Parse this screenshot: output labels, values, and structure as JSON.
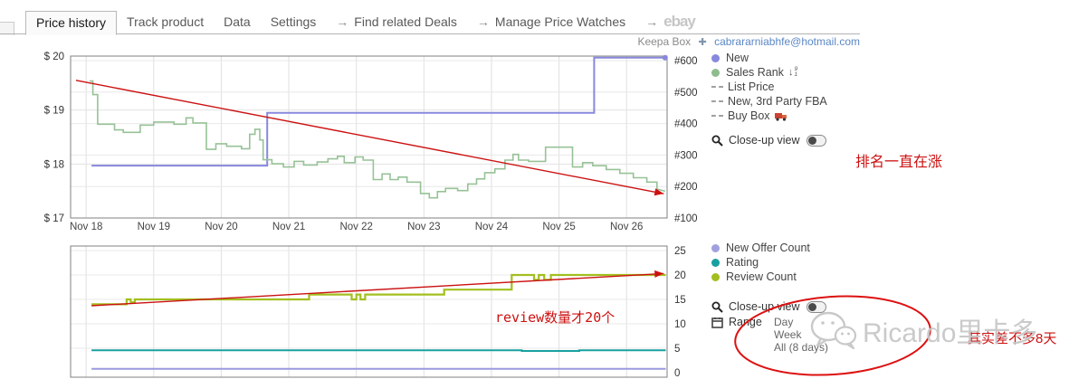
{
  "tabs": {
    "items": [
      {
        "label": "Price history",
        "active": true
      },
      {
        "label": "Track product",
        "active": false
      },
      {
        "label": "Data",
        "active": false
      },
      {
        "label": "Settings",
        "active": false
      },
      {
        "prefix": "→",
        "label": "Find related Deals",
        "active": false
      },
      {
        "prefix": "→",
        "label": "Manage Price Watches",
        "active": false
      },
      {
        "prefix": "→",
        "label": "ebay",
        "active": false,
        "logo": true
      }
    ]
  },
  "account": {
    "label": "Keepa Box",
    "icon": "keepa-plus-icon",
    "email": "cabrararniabhfe@hotmail.com"
  },
  "legend_top": {
    "items": [
      {
        "label": "New",
        "marker": "circle",
        "color": "#8888dd"
      },
      {
        "label": "Sales Rank",
        "marker": "circle",
        "color": "#8fbc8f",
        "icon": "sort-numeric-icon"
      },
      {
        "label": "List Price",
        "marker": "dash",
        "color": "#a0a0a0"
      },
      {
        "label": "New, 3rd Party FBA",
        "marker": "dash",
        "color": "#a0a0a0"
      },
      {
        "label": "Buy Box",
        "marker": "dash",
        "color": "#a0a0a0",
        "icon": "truck-icon"
      }
    ],
    "close_up_label": "Close-up view"
  },
  "legend_bottom": {
    "items": [
      {
        "label": "New Offer Count",
        "marker": "circle",
        "color": "#a0a0e0"
      },
      {
        "label": "Rating",
        "marker": "circle",
        "color": "#18a0a0"
      },
      {
        "label": "Review Count",
        "marker": "circle",
        "color": "#a2bf1f"
      }
    ],
    "close_up_label": "Close-up view",
    "range_label": "Range",
    "range_options": [
      "Day",
      "Week",
      "All (8 days)"
    ]
  },
  "annotations": {
    "rank_note": "排名一直在涨",
    "review_note": "review数量才20个",
    "days_note": "其实差不多8天",
    "color": "#cc1111"
  },
  "watermark": {
    "icon": "wechat-icon",
    "text": "Ricardo里卡多"
  },
  "chart_data": [
    {
      "type": "line",
      "title": "Price history (top chart)",
      "x_ticks": [
        "Nov 18",
        "Nov 19",
        "Nov 20",
        "Nov 21",
        "Nov 22",
        "Nov 23",
        "Nov 24",
        "Nov 25",
        "Nov 26"
      ],
      "x_tick_days": [
        18,
        19,
        20,
        21,
        22,
        23,
        24,
        25,
        26
      ],
      "x_range": [
        17.77,
        26.6
      ],
      "y_left": {
        "ticks": [
          "$ 20",
          "$ 19",
          "$ 18",
          "$ 17"
        ],
        "values": [
          20,
          19,
          18,
          17
        ],
        "range": [
          17,
          20
        ],
        "grid_values": [
          18,
          19
        ]
      },
      "y_right": {
        "ticks": [
          "#600",
          "#500",
          "#400",
          "#300",
          "#200",
          "#100"
        ],
        "values": [
          600,
          500,
          400,
          300,
          200,
          100
        ],
        "range": [
          100,
          600
        ],
        "grid_values": [
          200,
          300,
          400,
          500,
          600
        ]
      },
      "series": [
        {
          "name": "New",
          "color": "#8888dd",
          "axis": "left",
          "width": 2,
          "end_dot": true,
          "points": [
            [
              18.08,
              17.97
            ],
            [
              20.68,
              17.97
            ],
            [
              20.68,
              18.95
            ],
            [
              25.52,
              18.95
            ],
            [
              25.52,
              19.97
            ],
            [
              26.57,
              19.97
            ]
          ]
        },
        {
          "name": "Sales Rank",
          "color": "#97c297",
          "axis": "right",
          "width": 1.6,
          "points": [
            [
              18.05,
              535
            ],
            [
              18.1,
              535
            ],
            [
              18.1,
              492
            ],
            [
              18.17,
              492
            ],
            [
              18.17,
              398
            ],
            [
              18.42,
              398
            ],
            [
              18.42,
              380
            ],
            [
              18.55,
              380
            ],
            [
              18.55,
              372
            ],
            [
              18.8,
              372
            ],
            [
              18.8,
              395
            ],
            [
              19.0,
              395
            ],
            [
              19.0,
              405
            ],
            [
              19.3,
              405
            ],
            [
              19.3,
              398
            ],
            [
              19.48,
              398
            ],
            [
              19.48,
              418
            ],
            [
              19.58,
              418
            ],
            [
              19.58,
              402
            ],
            [
              19.78,
              402
            ],
            [
              19.78,
              318
            ],
            [
              19.92,
              318
            ],
            [
              19.92,
              336
            ],
            [
              20.08,
              336
            ],
            [
              20.08,
              328
            ],
            [
              20.3,
              328
            ],
            [
              20.3,
              320
            ],
            [
              20.42,
              320
            ],
            [
              20.42,
              366
            ],
            [
              20.5,
              366
            ],
            [
              20.5,
              382
            ],
            [
              20.57,
              382
            ],
            [
              20.57,
              348
            ],
            [
              20.62,
              348
            ],
            [
              20.62,
              285
            ],
            [
              20.75,
              285
            ],
            [
              20.75,
              272
            ],
            [
              20.92,
              272
            ],
            [
              20.92,
              262
            ],
            [
              21.08,
              262
            ],
            [
              21.08,
              280
            ],
            [
              21.22,
              280
            ],
            [
              21.22,
              268
            ],
            [
              21.42,
              268
            ],
            [
              21.42,
              278
            ],
            [
              21.58,
              278
            ],
            [
              21.58,
              288
            ],
            [
              21.72,
              288
            ],
            [
              21.72,
              296
            ],
            [
              21.82,
              296
            ],
            [
              21.82,
              276
            ],
            [
              21.98,
              276
            ],
            [
              21.98,
              294
            ],
            [
              22.1,
              294
            ],
            [
              22.1,
              284
            ],
            [
              22.25,
              284
            ],
            [
              22.25,
              222
            ],
            [
              22.38,
              222
            ],
            [
              22.38,
              240
            ],
            [
              22.5,
              240
            ],
            [
              22.5,
              222
            ],
            [
              22.62,
              222
            ],
            [
              22.62,
              230
            ],
            [
              22.75,
              230
            ],
            [
              22.75,
              214
            ],
            [
              22.95,
              214
            ],
            [
              22.95,
              178
            ],
            [
              23.08,
              178
            ],
            [
              23.08,
              164
            ],
            [
              23.2,
              164
            ],
            [
              23.2,
              184
            ],
            [
              23.32,
              184
            ],
            [
              23.32,
              194
            ],
            [
              23.5,
              194
            ],
            [
              23.5,
              187
            ],
            [
              23.65,
              187
            ],
            [
              23.65,
              208
            ],
            [
              23.78,
              208
            ],
            [
              23.78,
              224
            ],
            [
              23.9,
              224
            ],
            [
              23.9,
              244
            ],
            [
              24.05,
              244
            ],
            [
              24.05,
              256
            ],
            [
              24.2,
              256
            ],
            [
              24.2,
              284
            ],
            [
              24.32,
              284
            ],
            [
              24.32,
              302
            ],
            [
              24.4,
              302
            ],
            [
              24.4,
              284
            ],
            [
              24.55,
              284
            ],
            [
              24.55,
              280
            ],
            [
              24.8,
              280
            ],
            [
              24.8,
              325
            ],
            [
              25.2,
              325
            ],
            [
              25.2,
              262
            ],
            [
              25.35,
              262
            ],
            [
              25.35,
              276
            ],
            [
              25.5,
              276
            ],
            [
              25.5,
              266
            ],
            [
              25.7,
              266
            ],
            [
              25.7,
              254
            ],
            [
              25.9,
              254
            ],
            [
              25.9,
              242
            ],
            [
              26.1,
              242
            ],
            [
              26.1,
              228
            ],
            [
              26.3,
              228
            ],
            [
              26.3,
              214
            ],
            [
              26.45,
              214
            ],
            [
              26.45,
              192
            ],
            [
              26.57,
              185
            ]
          ]
        },
        {
          "name": "trend-arrow",
          "color": "#cc1111",
          "axis": "left",
          "width": 1.4,
          "arrow": true,
          "points": [
            [
              17.85,
              19.55
            ],
            [
              26.55,
              17.45
            ]
          ]
        }
      ]
    },
    {
      "type": "line",
      "title": "Offer count / rating / review count (bottom chart)",
      "x_tick_days": [
        18,
        19,
        20,
        21,
        22,
        23,
        24,
        25,
        26
      ],
      "x_range": [
        17.77,
        26.6
      ],
      "y_right": {
        "ticks": [
          "25",
          "20",
          "15",
          "10",
          "5",
          "0"
        ],
        "values": [
          25,
          20,
          15,
          10,
          5,
          0
        ],
        "range": [
          0,
          25
        ],
        "grid_values": [
          5,
          10,
          15,
          20,
          25
        ]
      },
      "series": [
        {
          "name": "Review Count",
          "color": "#a2bf1f",
          "axis": "right",
          "width": 2.2,
          "points": [
            [
              18.08,
              14
            ],
            [
              18.6,
              14
            ],
            [
              18.6,
              15
            ],
            [
              18.66,
              15
            ],
            [
              18.66,
              14.4
            ],
            [
              18.72,
              14.4
            ],
            [
              18.72,
              15
            ],
            [
              21.3,
              15
            ],
            [
              21.3,
              16
            ],
            [
              21.93,
              16
            ],
            [
              21.93,
              15
            ],
            [
              22.0,
              15
            ],
            [
              22.0,
              16
            ],
            [
              22.06,
              16
            ],
            [
              22.06,
              15
            ],
            [
              22.13,
              15
            ],
            [
              22.13,
              16
            ],
            [
              23.3,
              16
            ],
            [
              23.3,
              17
            ],
            [
              24.3,
              17
            ],
            [
              24.3,
              20
            ],
            [
              24.63,
              20
            ],
            [
              24.63,
              19
            ],
            [
              24.7,
              19
            ],
            [
              24.7,
              20
            ],
            [
              24.78,
              20
            ],
            [
              24.78,
              19
            ],
            [
              24.88,
              19
            ],
            [
              24.88,
              20
            ],
            [
              26.58,
              20
            ]
          ]
        },
        {
          "name": "Rating",
          "color": "#18a0a0",
          "axis": "right",
          "width": 2,
          "points": [
            [
              18.08,
              4.6
            ],
            [
              24.45,
              4.6
            ],
            [
              24.45,
              4.45
            ],
            [
              25.3,
              4.45
            ],
            [
              25.3,
              4.6
            ],
            [
              26.58,
              4.6
            ]
          ]
        },
        {
          "name": "New Offer Count",
          "color": "#9a9ade",
          "axis": "right",
          "width": 2,
          "points": [
            [
              18.08,
              0.8
            ],
            [
              26.58,
              0.8
            ]
          ]
        },
        {
          "name": "trend-arrow",
          "color": "#cc1111",
          "axis": "right",
          "width": 1.4,
          "arrow": true,
          "points": [
            [
              18.08,
              13.7
            ],
            [
              26.55,
              20.3
            ]
          ]
        }
      ]
    }
  ]
}
